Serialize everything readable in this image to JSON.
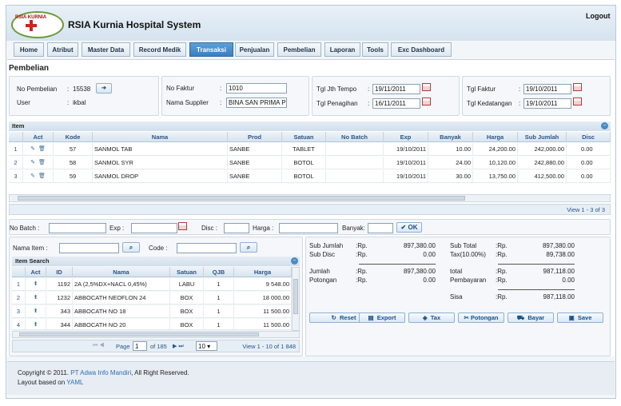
{
  "app": {
    "logo_text": "RSIA KURNIA",
    "title": "RSIA Kurnia Hospital System",
    "logout": "Logout"
  },
  "nav": [
    {
      "label": "Home"
    },
    {
      "label": "Atribut"
    },
    {
      "label": "Master Data"
    },
    {
      "label": "Record Medik"
    },
    {
      "label": "Transaksi",
      "active": true
    },
    {
      "label": "Penjualan"
    },
    {
      "label": "Pembelian"
    },
    {
      "label": "Laporan"
    },
    {
      "label": "Tools"
    },
    {
      "label": "Exc Dashboard"
    }
  ],
  "page": {
    "title": "Pembelian"
  },
  "form": {
    "no_pembelian_label": "No Pembelian",
    "no_pembelian_sep": ":",
    "no_pembelian_value": "15538",
    "user_label": "User",
    "user_sep": ":",
    "user_value": "ikbal",
    "no_faktur_label": "No Faktur",
    "no_faktur_sep": ":",
    "no_faktur_value": "1010",
    "nama_supplier_label": "Nama Supplier",
    "nama_supplier_sep": ":",
    "nama_supplier_value": "BINA SAN PRIMA P",
    "tgl_jth_tempo_label": "Tgl Jth Tempo",
    "tgl_jth_tempo_sep": ":",
    "tgl_jth_tempo_value": "19/11/2011",
    "tgl_penagihan_label": "Tgl Penagihan",
    "tgl_penagihan_sep": ":",
    "tgl_penagihan_value": "16/11/2011",
    "tgl_faktur_label": "Tgl Faktur",
    "tgl_faktur_sep": ":",
    "tgl_faktur_value": "19/10/2011",
    "tgl_kedatangan_label": "Tgl Kedatangan",
    "tgl_kedatangan_sep": ":",
    "tgl_kedatangan_value": "19/10/2011"
  },
  "item_grid": {
    "title": "Item",
    "columns": [
      "Act",
      "Kode",
      "Nama",
      "Prod",
      "Satuan",
      "No Batch",
      "Exp",
      "Banyak",
      "Harga",
      "Sub Jumlah",
      "Disc"
    ],
    "rows": [
      {
        "n": "1",
        "kode": "57",
        "nama": "SANMOL TAB",
        "prod": "SANBE",
        "satuan": "TABLET",
        "batch": "",
        "exp": "19/10/2011",
        "banyak": "10.00",
        "harga": "24,200.00",
        "sub": "242,000.00",
        "disc": "0.00"
      },
      {
        "n": "2",
        "kode": "58",
        "nama": "SANMOL SYR",
        "prod": "SANBE",
        "satuan": "BOTOL",
        "batch": "",
        "exp": "19/10/2011",
        "banyak": "24.00",
        "harga": "10,120.00",
        "sub": "242,880.00",
        "disc": "0.00"
      },
      {
        "n": "3",
        "kode": "59",
        "nama": "SANMOL DROP",
        "prod": "SANBE",
        "satuan": "BOTOL",
        "batch": "",
        "exp": "19/10/2011",
        "banyak": "30.00",
        "harga": "13,750.00",
        "sub": "412,500.00",
        "disc": "0.00"
      }
    ],
    "pager_text": "View 1 - 3 of 3"
  },
  "entry": {
    "no_batch_label": "No Batch :",
    "exp_label": "Exp :",
    "disc_label": "Disc :",
    "harga_label": "Harga :",
    "banyak_label": "Banyak:",
    "ok_label": "OK"
  },
  "search": {
    "nama_item_label": "Nama Item :",
    "kode_label": "Code :"
  },
  "item_search": {
    "title": "Item Search",
    "columns": [
      "Act",
      "ID",
      "Nama",
      "Satuan",
      "QJB",
      "Harga"
    ],
    "rows": [
      {
        "n": "1",
        "id": "1192",
        "nama": "2A (2,5%DX+NACL 0,45%)",
        "satuan": "LABU",
        "qjb": "1",
        "harga": "9 548.00"
      },
      {
        "n": "2",
        "id": "1232",
        "nama": "ABBOCATH NEOFLON 24",
        "satuan": "BOX",
        "qjb": "1",
        "harga": "18 000.00"
      },
      {
        "n": "3",
        "id": "343",
        "nama": "ABBOCATH NO 18",
        "satuan": "BOX",
        "qjb": "1",
        "harga": "11 500.00"
      },
      {
        "n": "4",
        "id": "344",
        "nama": "ABBOCATH NO 20",
        "satuan": "BOX",
        "qjb": "1",
        "harga": "11 500.00"
      }
    ],
    "page_label": "Page",
    "page_value": "1",
    "of_label": "of 185",
    "per_page": "10",
    "view_text": "View 1 - 10 of 1 848"
  },
  "summary": {
    "sub_jumlah_label": "Sub Jumlah",
    "sub_jumlah_cur": ":Rp.",
    "sub_jumlah": "897,380.00",
    "sub_disc_label": "Sub Disc",
    "sub_disc_cur": ":Rp.",
    "sub_disc": "0.00",
    "jumlah_label": "Jumlah",
    "jumlah_cur": ":Rp.",
    "jumlah": "897,380.00",
    "potongan_label": "Potongan",
    "potongan_cur": ":Rp.",
    "potongan": "0.00",
    "sub_total_label": "Sub Total",
    "sub_total_cur": ":Rp.",
    "sub_total": "897,380.00",
    "tax_label": "Tax(10.00%)",
    "tax_cur": ":Rp.",
    "tax": "89,738.00",
    "total_label": "total",
    "total_cur": ":Rp.",
    "total": "987,118.00",
    "pembayaran_label": "Pembayaran",
    "pembayaran_cur": ":Rp.",
    "pembayaran": "0.00",
    "sisa_label": "Sisa",
    "sisa_cur": ":Rp.",
    "sisa": "987,118.00"
  },
  "actions": {
    "reset": "Reset",
    "export": "Export",
    "tax": "Tax",
    "potongan": "Potongan",
    "bayar": "Bayar",
    "save": "Save"
  },
  "footer": {
    "line1_prefix": "Copyright © 2011.",
    "line1_link": "PT Adwa Info Mandiri",
    "line1_suffix": ", All Right Reserved.",
    "line2_prefix": "Layout based on",
    "line2_link": "YAML"
  }
}
